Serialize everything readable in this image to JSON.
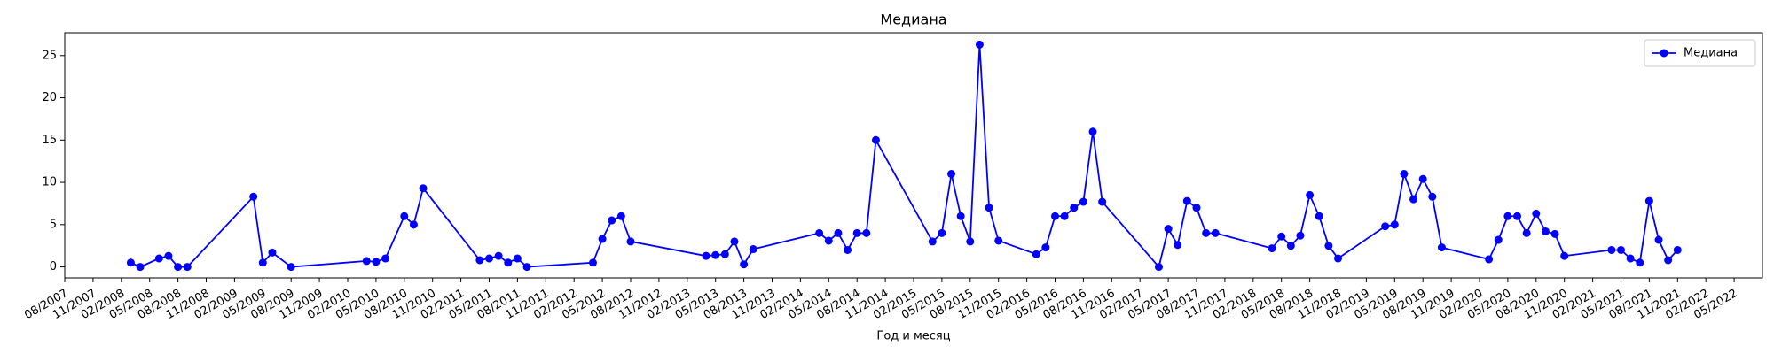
{
  "chart_data": {
    "type": "line",
    "title": "Медиана",
    "xlabel": "Год и месяц",
    "x": [
      "03/2008",
      "04/2008",
      "06/2008",
      "07/2008",
      "08/2008",
      "09/2008",
      "04/2009",
      "05/2009",
      "06/2009",
      "08/2009",
      "04/2010",
      "05/2010",
      "06/2010",
      "08/2010",
      "09/2010",
      "10/2010",
      "04/2011",
      "05/2011",
      "06/2011",
      "07/2011",
      "08/2011",
      "09/2011",
      "04/2012",
      "05/2012",
      "06/2012",
      "07/2012",
      "08/2012",
      "04/2013",
      "05/2013",
      "06/2013",
      "07/2013",
      "08/2013",
      "09/2013",
      "04/2014",
      "05/2014",
      "06/2014",
      "07/2014",
      "08/2014",
      "09/2014",
      "10/2014",
      "04/2015",
      "05/2015",
      "06/2015",
      "07/2015",
      "08/2015",
      "09/2015",
      "10/2015",
      "11/2015",
      "03/2016",
      "04/2016",
      "05/2016",
      "06/2016",
      "07/2016",
      "08/2016",
      "09/2016",
      "10/2016",
      "04/2017",
      "05/2017",
      "06/2017",
      "07/2017",
      "08/2017",
      "09/2017",
      "10/2017",
      "04/2018",
      "05/2018",
      "06/2018",
      "07/2018",
      "08/2018",
      "09/2018",
      "10/2018",
      "11/2018",
      "04/2019",
      "05/2019",
      "06/2019",
      "07/2019",
      "08/2019",
      "09/2019",
      "10/2019",
      "03/2020",
      "04/2020",
      "05/2020",
      "06/2020",
      "07/2020",
      "08/2020",
      "09/2020",
      "10/2020",
      "11/2020",
      "04/2021",
      "05/2021",
      "06/2021",
      "07/2021",
      "08/2021",
      "09/2021",
      "10/2021",
      "11/2021"
    ],
    "series": [
      {
        "name": "Медиана",
        "color": "#0000ff",
        "values": [
          0.5,
          0,
          1,
          1.3,
          0,
          0,
          8.3,
          0.5,
          1.7,
          0,
          0.7,
          0.6,
          1,
          6,
          5,
          9.3,
          0.8,
          1,
          1.3,
          0.5,
          1,
          0,
          0.5,
          3.3,
          5.5,
          6,
          3,
          1.3,
          1.4,
          1.5,
          3,
          0.3,
          2.1,
          4,
          3.1,
          4,
          2,
          4,
          4,
          15,
          3,
          4,
          11,
          6,
          3,
          26.3,
          7,
          3.1,
          1.5,
          2.3,
          6,
          6,
          7,
          7.7,
          16,
          7.7,
          0,
          4.5,
          2.6,
          7.8,
          7,
          4,
          4,
          2.2,
          3.6,
          2.5,
          3.7,
          8.5,
          6,
          2.5,
          1,
          4.8,
          5,
          11,
          8,
          10.4,
          8.3,
          2.3,
          0.9,
          3.2,
          6,
          6,
          4,
          6.3,
          4.2,
          3.9,
          1.3,
          2,
          2,
          1,
          0.5,
          7.8,
          3.2,
          0.8,
          2
        ]
      }
    ],
    "xlim": [
      "08/2007",
      "08/2022"
    ],
    "xticks": [
      "08/2007",
      "11/2007",
      "02/2008",
      "05/2008",
      "08/2008",
      "11/2008",
      "02/2009",
      "05/2009",
      "08/2009",
      "11/2009",
      "02/2010",
      "05/2010",
      "08/2010",
      "11/2010",
      "02/2011",
      "05/2011",
      "08/2011",
      "11/2011",
      "02/2012",
      "05/2012",
      "08/2012",
      "11/2012",
      "02/2013",
      "05/2013",
      "08/2013",
      "11/2013",
      "02/2014",
      "05/2014",
      "08/2014",
      "11/2014",
      "02/2015",
      "05/2015",
      "08/2015",
      "11/2015",
      "02/2016",
      "05/2016",
      "08/2016",
      "11/2016",
      "02/2017",
      "05/2017",
      "08/2017",
      "11/2017",
      "02/2018",
      "05/2018",
      "08/2018",
      "11/2018",
      "02/2019",
      "05/2019",
      "08/2019",
      "11/2019",
      "02/2020",
      "05/2020",
      "08/2020",
      "11/2020",
      "02/2021",
      "05/2021",
      "08/2021",
      "11/2021",
      "02/2022",
      "05/2022"
    ],
    "ylim": [
      -1.3,
      27.7
    ],
    "yticks": [
      0,
      5,
      10,
      15,
      20,
      25
    ],
    "legend": "upper right"
  }
}
